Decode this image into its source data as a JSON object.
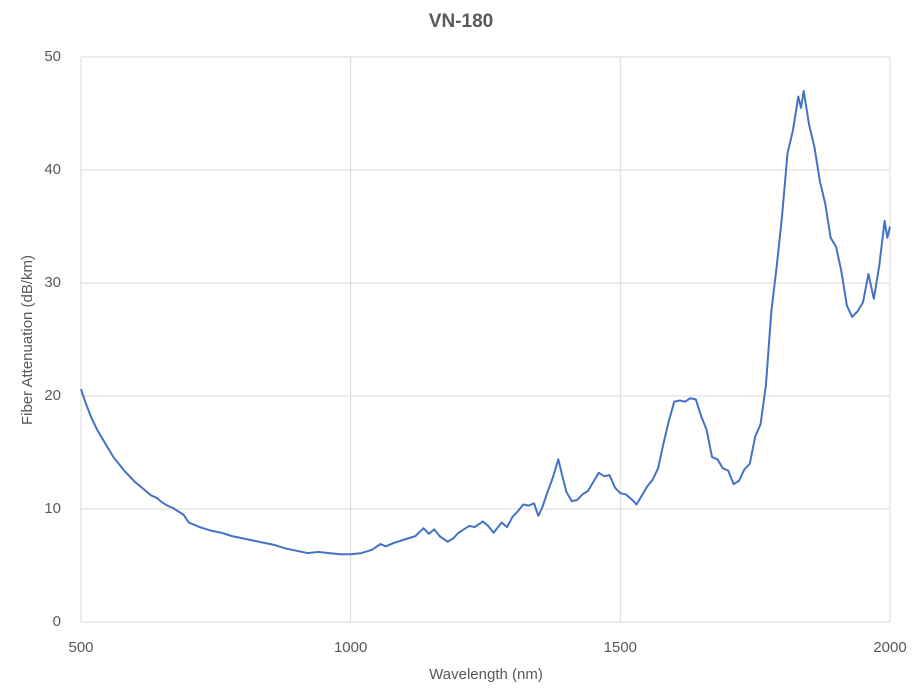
{
  "chart_data": {
    "type": "line",
    "title": "VN-180",
    "x_label": "Wavelength (nm)",
    "y_label": "Fiber Attenuation (dB/km)",
    "xlim": [
      500,
      2000
    ],
    "xticks": [
      500,
      1000,
      1500,
      2000
    ],
    "ylim": [
      0,
      50
    ],
    "yticks": [
      0,
      10,
      20,
      30,
      40,
      50
    ],
    "grid": true,
    "x": [
      500,
      510,
      520,
      530,
      540,
      550,
      560,
      570,
      580,
      590,
      600,
      610,
      620,
      630,
      640,
      650,
      660,
      670,
      680,
      690,
      700,
      710,
      720,
      740,
      760,
      780,
      800,
      820,
      840,
      860,
      880,
      900,
      920,
      940,
      960,
      980,
      1000,
      1020,
      1040,
      1055,
      1065,
      1080,
      1100,
      1120,
      1135,
      1145,
      1155,
      1165,
      1180,
      1190,
      1200,
      1210,
      1220,
      1230,
      1245,
      1255,
      1265,
      1280,
      1290,
      1300,
      1310,
      1320,
      1330,
      1340,
      1348,
      1355,
      1365,
      1375,
      1385,
      1392,
      1400,
      1410,
      1420,
      1430,
      1440,
      1450,
      1460,
      1470,
      1480,
      1490,
      1500,
      1510,
      1520,
      1530,
      1540,
      1550,
      1560,
      1570,
      1580,
      1590,
      1600,
      1610,
      1620,
      1630,
      1640,
      1650,
      1660,
      1670,
      1680,
      1690,
      1700,
      1710,
      1720,
      1730,
      1740,
      1750,
      1760,
      1770,
      1780,
      1790,
      1800,
      1810,
      1820,
      1830,
      1835,
      1840,
      1850,
      1860,
      1870,
      1880,
      1890,
      1900,
      1910,
      1920,
      1930,
      1940,
      1950,
      1960,
      1970,
      1980,
      1990,
      1995,
      2000
    ],
    "series": [
      {
        "name": "VN-180",
        "color": "#4472c4",
        "values": [
          20.6,
          19.2,
          18.0,
          17.0,
          16.2,
          15.4,
          14.6,
          14.0,
          13.4,
          12.9,
          12.4,
          12.0,
          11.6,
          11.2,
          11.0,
          10.6,
          10.3,
          10.1,
          9.8,
          9.5,
          8.8,
          8.6,
          8.4,
          8.1,
          7.9,
          7.6,
          7.4,
          7.2,
          7.0,
          6.8,
          6.5,
          6.3,
          6.1,
          6.2,
          6.1,
          6.0,
          6.0,
          6.1,
          6.4,
          6.9,
          6.7,
          7.0,
          7.3,
          7.6,
          8.3,
          7.8,
          8.2,
          7.6,
          7.1,
          7.4,
          7.9,
          8.2,
          8.5,
          8.4,
          8.9,
          8.5,
          7.9,
          8.8,
          8.4,
          9.3,
          9.8,
          10.4,
          10.3,
          10.5,
          9.4,
          10.1,
          11.5,
          12.8,
          14.4,
          13.0,
          11.5,
          10.7,
          10.8,
          11.3,
          11.6,
          12.4,
          13.2,
          12.9,
          13.0,
          11.9,
          11.4,
          11.3,
          10.9,
          10.4,
          11.2,
          12.0,
          12.6,
          13.6,
          15.8,
          17.8,
          19.5,
          19.6,
          19.5,
          19.8,
          19.7,
          18.2,
          17.0,
          14.6,
          14.4,
          13.6,
          13.4,
          12.2,
          12.5,
          13.5,
          14.0,
          16.4,
          17.5,
          21.0,
          27.5,
          31.5,
          36.0,
          41.5,
          43.5,
          46.5,
          45.5,
          47.0,
          44.0,
          42.0,
          39.0,
          37.0,
          34.0,
          33.2,
          31.0,
          28.0,
          27.0,
          27.5,
          28.3,
          30.8,
          28.6,
          31.5,
          35.5,
          34.0,
          35.0
        ]
      }
    ]
  }
}
